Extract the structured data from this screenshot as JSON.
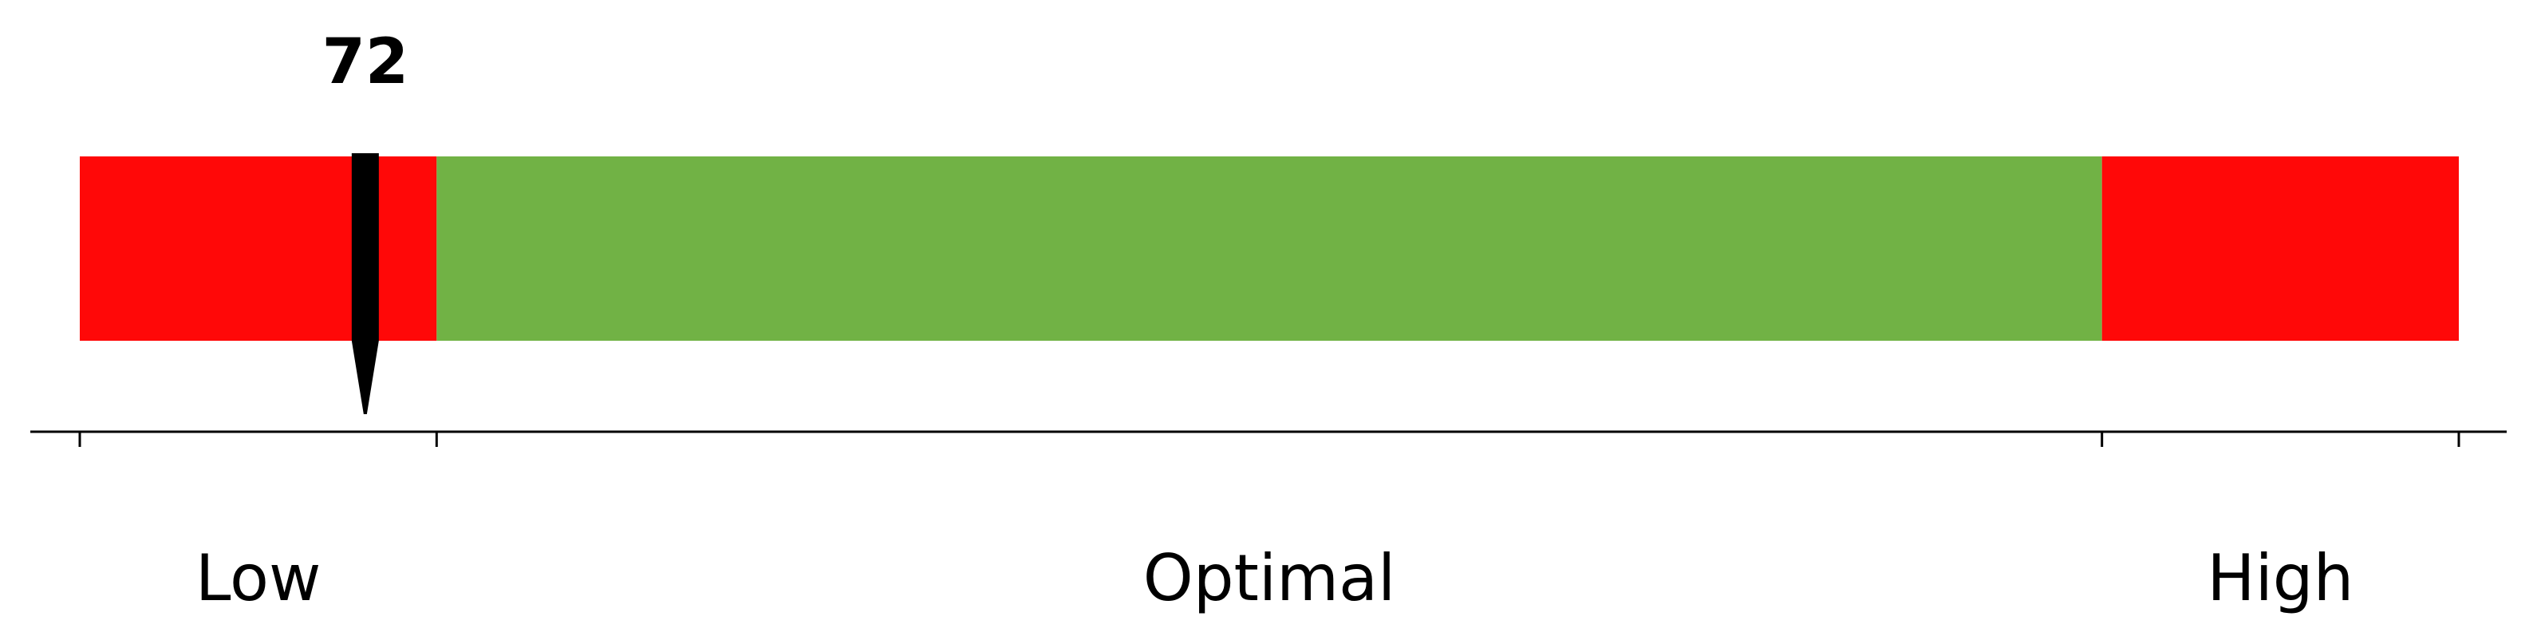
{
  "chart_data": {
    "type": "bullet",
    "value": 72,
    "value_label": "72",
    "xlim": [
      60,
      160
    ],
    "zones": [
      {
        "name": "Low",
        "start": 60,
        "end": 75,
        "color": "#ff0808"
      },
      {
        "name": "Optimal",
        "start": 75,
        "end": 145,
        "color": "#71b245"
      },
      {
        "name": "High",
        "start": 145,
        "end": 160,
        "color": "#ff0808"
      }
    ],
    "ticks": [
      60,
      75,
      145,
      160
    ],
    "marker_color": "#000000",
    "axis_color": "#000000",
    "grid": false
  }
}
